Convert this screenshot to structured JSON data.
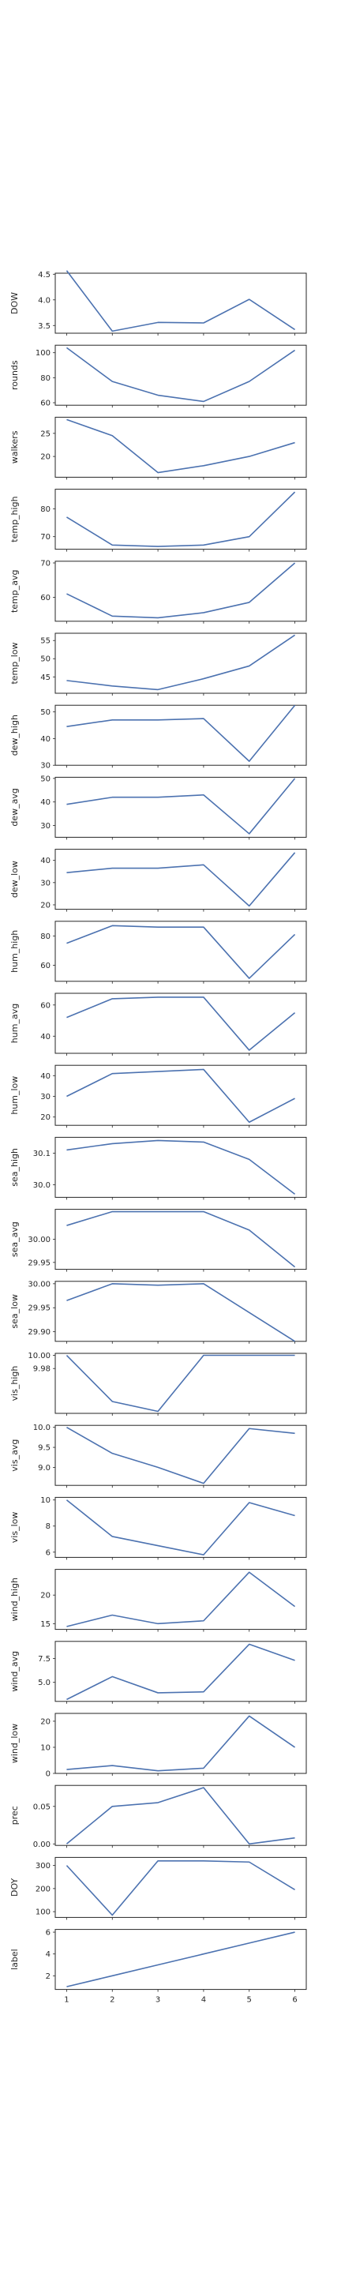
{
  "chart_data": [
    {
      "type": "line",
      "ylabel": "DOW",
      "x": [
        1,
        2,
        3,
        4,
        5,
        6
      ],
      "values": [
        4.57,
        3.39,
        3.56,
        3.55,
        4.01,
        3.42
      ],
      "ylim": [
        3.35,
        4.52
      ],
      "yticks": [
        3.5,
        4.0,
        4.5
      ],
      "ytick_labels": [
        "3.5",
        "4.0",
        "4.5"
      ]
    },
    {
      "type": "line",
      "ylabel": "rounds",
      "x": [
        1,
        2,
        3,
        4,
        5,
        6
      ],
      "values": [
        104,
        77,
        66,
        61,
        77,
        102
      ],
      "ylim": [
        58,
        106
      ],
      "yticks": [
        60,
        80,
        100
      ],
      "ytick_labels": [
        "60",
        "80",
        "100"
      ]
    },
    {
      "type": "line",
      "ylabel": "walkers",
      "x": [
        1,
        2,
        3,
        4,
        5,
        6
      ],
      "values": [
        28,
        24.5,
        16.5,
        18,
        20,
        23
      ],
      "ylim": [
        15.5,
        28.5
      ],
      "yticks": [
        20,
        25
      ],
      "ytick_labels": [
        "20",
        "25"
      ]
    },
    {
      "type": "line",
      "ylabel": "temp_high",
      "x": [
        1,
        2,
        3,
        4,
        5,
        6
      ],
      "values": [
        77,
        67,
        66.5,
        67,
        70,
        86
      ],
      "ylim": [
        65.5,
        87
      ],
      "yticks": [
        70,
        80
      ],
      "ytick_labels": [
        "70",
        "80"
      ]
    },
    {
      "type": "line",
      "ylabel": "temp_avg",
      "x": [
        1,
        2,
        3,
        4,
        5,
        6
      ],
      "values": [
        61,
        54.5,
        54,
        55.5,
        58.5,
        70
      ],
      "ylim": [
        53,
        70.5
      ],
      "yticks": [
        60,
        70
      ],
      "ytick_labels": [
        "60",
        "70"
      ]
    },
    {
      "type": "line",
      "ylabel": "temp_low",
      "x": [
        1,
        2,
        3,
        4,
        5,
        6
      ],
      "values": [
        44,
        42.5,
        41.5,
        44.5,
        48,
        56.5
      ],
      "ylim": [
        40.5,
        57
      ],
      "yticks": [
        45,
        50,
        55
      ],
      "ytick_labels": [
        "45",
        "50",
        "55"
      ]
    },
    {
      "type": "line",
      "ylabel": "dew_high",
      "x": [
        1,
        2,
        3,
        4,
        5,
        6
      ],
      "values": [
        44.5,
        47,
        47,
        47.5,
        31.5,
        52.5
      ],
      "ylim": [
        30,
        52.5
      ],
      "yticks": [
        30,
        40,
        50
      ],
      "ytick_labels": [
        "30",
        "40",
        "50"
      ]
    },
    {
      "type": "line",
      "ylabel": "dew_avg",
      "x": [
        1,
        2,
        3,
        4,
        5,
        6
      ],
      "values": [
        39,
        42,
        42,
        43,
        26.5,
        50
      ],
      "ylim": [
        25,
        50.5
      ],
      "yticks": [
        30,
        40,
        50
      ],
      "ytick_labels": [
        "30",
        "40",
        "50"
      ]
    },
    {
      "type": "line",
      "ylabel": "dew_low",
      "x": [
        1,
        2,
        3,
        4,
        5,
        6
      ],
      "values": [
        34.5,
        36.5,
        36.5,
        38,
        19.5,
        43.5
      ],
      "ylim": [
        18,
        45
      ],
      "yticks": [
        20,
        30,
        40
      ],
      "ytick_labels": [
        "20",
        "30",
        "40"
      ]
    },
    {
      "type": "line",
      "ylabel": "hum_high",
      "x": [
        1,
        2,
        3,
        4,
        5,
        6
      ],
      "values": [
        75,
        87,
        86,
        86,
        51,
        81
      ],
      "ylim": [
        49,
        90
      ],
      "yticks": [
        60,
        80
      ],
      "ytick_labels": [
        "60",
        "80"
      ]
    },
    {
      "type": "line",
      "ylabel": "hum_avg",
      "x": [
        1,
        2,
        3,
        4,
        5,
        6
      ],
      "values": [
        52,
        64,
        65,
        65,
        31,
        55
      ],
      "ylim": [
        29,
        67.5
      ],
      "yticks": [
        40,
        60
      ],
      "ytick_labels": [
        "40",
        "60"
      ]
    },
    {
      "type": "line",
      "ylabel": "hum_low",
      "x": [
        1,
        2,
        3,
        4,
        5,
        6
      ],
      "values": [
        30,
        41,
        42,
        43,
        17.5,
        29
      ],
      "ylim": [
        16,
        45
      ],
      "yticks": [
        20,
        30,
        40
      ],
      "ytick_labels": [
        "20",
        "30",
        "40"
      ]
    },
    {
      "type": "line",
      "ylabel": "sea_high",
      "x": [
        1,
        2,
        3,
        4,
        5,
        6
      ],
      "values": [
        30.11,
        30.13,
        30.14,
        30.135,
        30.08,
        29.97
      ],
      "ylim": [
        29.96,
        30.15
      ],
      "yticks": [
        30.0,
        30.1
      ],
      "ytick_labels": [
        "30.0",
        "30.1"
      ]
    },
    {
      "type": "line",
      "ylabel": "sea_avg",
      "x": [
        1,
        2,
        3,
        4,
        5,
        6
      ],
      "values": [
        30.03,
        30.06,
        30.06,
        30.06,
        30.02,
        29.94
      ],
      "ylim": [
        29.935,
        30.065
      ],
      "yticks": [
        29.95,
        30.0
      ],
      "ytick_labels": [
        "29.95",
        "30.00"
      ]
    },
    {
      "type": "line",
      "ylabel": "sea_low",
      "x": [
        1,
        2,
        3,
        4,
        5,
        6
      ],
      "values": [
        29.965,
        30.0,
        29.997,
        30.0,
        29.94,
        29.88
      ],
      "ylim": [
        29.88,
        30.005
      ],
      "yticks": [
        29.9,
        29.95,
        30.0
      ],
      "ytick_labels": [
        "29.90",
        "29.95",
        "30.00"
      ]
    },
    {
      "type": "line",
      "ylabel": "vis_high",
      "x": [
        1,
        2,
        3,
        4,
        5,
        6
      ],
      "values": [
        10.0,
        9.93,
        9.915,
        10.0,
        10.0,
        10.0
      ],
      "ylim": [
        9.912,
        10.003
      ],
      "yticks": [
        9.98,
        10.0
      ],
      "ytick_labels": [
        "9.98",
        "10.00"
      ]
    },
    {
      "type": "line",
      "ylabel": "vis_avg",
      "x": [
        1,
        2,
        3,
        4,
        5,
        6
      ],
      "values": [
        10.0,
        9.35,
        9.0,
        8.6,
        9.97,
        9.85
      ],
      "ylim": [
        8.55,
        10.05
      ],
      "yticks": [
        9.0,
        9.5,
        10.0
      ],
      "ytick_labels": [
        "9.0",
        "9.5",
        "10.0"
      ]
    },
    {
      "type": "line",
      "ylabel": "vis_low",
      "x": [
        1,
        2,
        3,
        4,
        5,
        6
      ],
      "values": [
        10,
        7.2,
        6.5,
        5.8,
        9.8,
        8.8
      ],
      "ylim": [
        5.6,
        10.2
      ],
      "yticks": [
        6,
        8,
        10
      ],
      "ytick_labels": [
        "6",
        "8",
        "10"
      ]
    },
    {
      "type": "line",
      "ylabel": "wind_high",
      "x": [
        1,
        2,
        3,
        4,
        5,
        6
      ],
      "values": [
        14.5,
        16.5,
        15,
        15.5,
        24,
        18
      ],
      "ylim": [
        14,
        24.5
      ],
      "yticks": [
        15,
        20
      ],
      "ytick_labels": [
        "15",
        "20"
      ]
    },
    {
      "type": "line",
      "ylabel": "wind_avg",
      "x": [
        1,
        2,
        3,
        4,
        5,
        6
      ],
      "values": [
        3.2,
        5.6,
        3.9,
        4.0,
        9.0,
        7.3
      ],
      "ylim": [
        3.0,
        9.3
      ],
      "yticks": [
        5.0,
        7.5
      ],
      "ytick_labels": [
        "5.0",
        "7.5"
      ]
    },
    {
      "type": "line",
      "ylabel": "wind_low",
      "x": [
        1,
        2,
        3,
        4,
        5,
        6
      ],
      "values": [
        1.5,
        3,
        1,
        2,
        22,
        10
      ],
      "ylim": [
        0,
        23
      ],
      "yticks": [
        0,
        10,
        20
      ],
      "ytick_labels": [
        "0",
        "10",
        "20"
      ]
    },
    {
      "type": "line",
      "ylabel": "prec",
      "x": [
        1,
        2,
        3,
        4,
        5,
        6
      ],
      "values": [
        0.0,
        0.05,
        0.055,
        0.075,
        0.0,
        0.008
      ],
      "ylim": [
        -0.002,
        0.078
      ],
      "yticks": [
        0.0,
        0.05
      ],
      "ytick_labels": [
        "0.00",
        "0.05"
      ]
    },
    {
      "type": "line",
      "ylabel": "DOY",
      "x": [
        1,
        2,
        3,
        4,
        5,
        6
      ],
      "values": [
        300,
        85,
        320,
        320,
        315,
        195
      ],
      "ylim": [
        75,
        335
      ],
      "yticks": [
        100,
        200,
        300
      ],
      "ytick_labels": [
        "100",
        "200",
        "300"
      ]
    },
    {
      "type": "line",
      "ylabel": "label",
      "x": [
        1,
        2,
        3,
        4,
        5,
        6
      ],
      "values": [
        1,
        2,
        3,
        4,
        5,
        6
      ],
      "ylim": [
        0.75,
        6.25
      ],
      "yticks": [
        2,
        4,
        6
      ],
      "ytick_labels": [
        "2",
        "4",
        "6"
      ]
    }
  ],
  "xtick_labels": [
    "1",
    "2",
    "3",
    "4",
    "5",
    "6"
  ],
  "line_color": "#4c72b0"
}
